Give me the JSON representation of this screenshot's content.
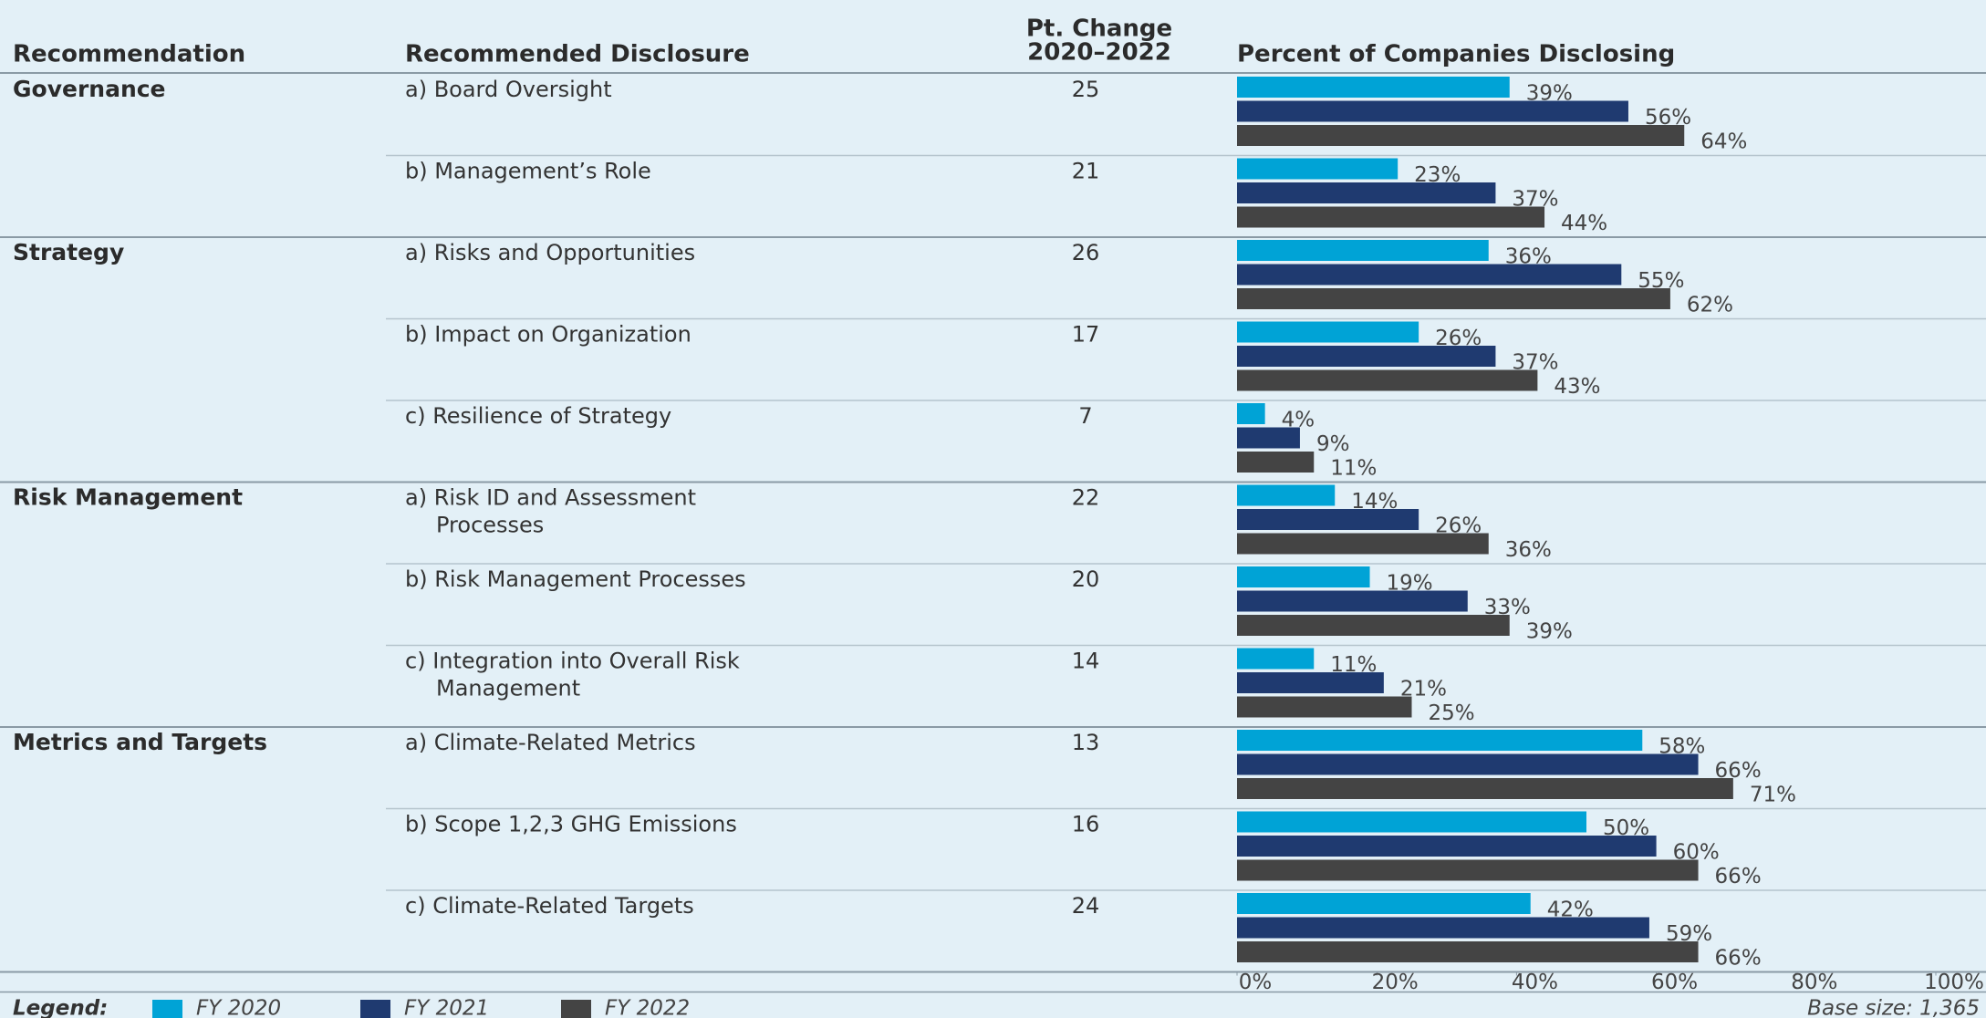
{
  "chart_data": {
    "type": "bar",
    "orientation": "horizontal",
    "headers": {
      "recommendation": "Recommendation",
      "disclosure": "Recommended Disclosure",
      "change": [
        "Pt. Change",
        "2020–2022"
      ],
      "percent": "Percent of Companies Disclosing"
    },
    "groups": [
      {
        "name": "Governance",
        "disclosures": [
          [
            "a) Board Oversight"
          ],
          [
            "b) Management’s Role"
          ]
        ]
      },
      {
        "name": "Strategy",
        "disclosures": [
          [
            "a) Risks and Opportunities"
          ],
          [
            "b) Impact on Organization"
          ],
          [
            "c) Resilience of Strategy"
          ]
        ]
      },
      {
        "name": "Risk Management",
        "disclosures": [
          [
            "a) Risk ID and Assessment",
            "Processes"
          ],
          [
            "b) Risk Management Processes"
          ],
          [
            "c) Integration into Overall Risk",
            "Management"
          ]
        ]
      },
      {
        "name": "Metrics and Targets",
        "disclosures": [
          [
            "a) Climate-Related Metrics"
          ],
          [
            "b) Scope 1,2,3 GHG Emissions"
          ],
          [
            "c) Climate-Related Targets"
          ]
        ]
      }
    ],
    "pt_change": [
      25,
      21,
      26,
      17,
      7,
      22,
      20,
      14,
      13,
      16,
      24
    ],
    "series": [
      {
        "name": "FY 2020",
        "color": "#00a3d6",
        "values": [
          39,
          23,
          36,
          26,
          4,
          14,
          19,
          11,
          58,
          50,
          42
        ],
        "value_labels": [
          "39%",
          "23%",
          "36%",
          "26%",
          "4%",
          "14%",
          "19%",
          "11%",
          "58%",
          "50%",
          "42%"
        ]
      },
      {
        "name": "FY 2021",
        "color": "#1f3a70",
        "values": [
          56,
          37,
          55,
          37,
          9,
          26,
          33,
          21,
          66,
          60,
          59
        ],
        "value_labels": [
          "56%",
          "37%",
          "55%",
          "37%",
          "9%",
          "26%",
          "33%",
          "21%",
          "66%",
          "60%",
          "59%"
        ]
      },
      {
        "name": "FY 2022",
        "color": "#444444",
        "values": [
          64,
          44,
          62,
          43,
          11,
          36,
          39,
          25,
          71,
          66,
          66
        ],
        "value_labels": [
          "64%",
          "44%",
          "62%",
          "43%",
          "11%",
          "36%",
          "39%",
          "25%",
          "71%",
          "66%",
          "66%"
        ]
      }
    ],
    "xlim": [
      0,
      100
    ],
    "xticks": [
      {
        "value": 0,
        "label": "0%"
      },
      {
        "value": 20,
        "label": "20%"
      },
      {
        "value": 40,
        "label": "40%"
      },
      {
        "value": 60,
        "label": "60%"
      },
      {
        "value": 80,
        "label": "80%"
      },
      {
        "value": 100,
        "label": "100%"
      }
    ],
    "legend_label": "Legend:",
    "base_size": "Base size: 1,365"
  }
}
